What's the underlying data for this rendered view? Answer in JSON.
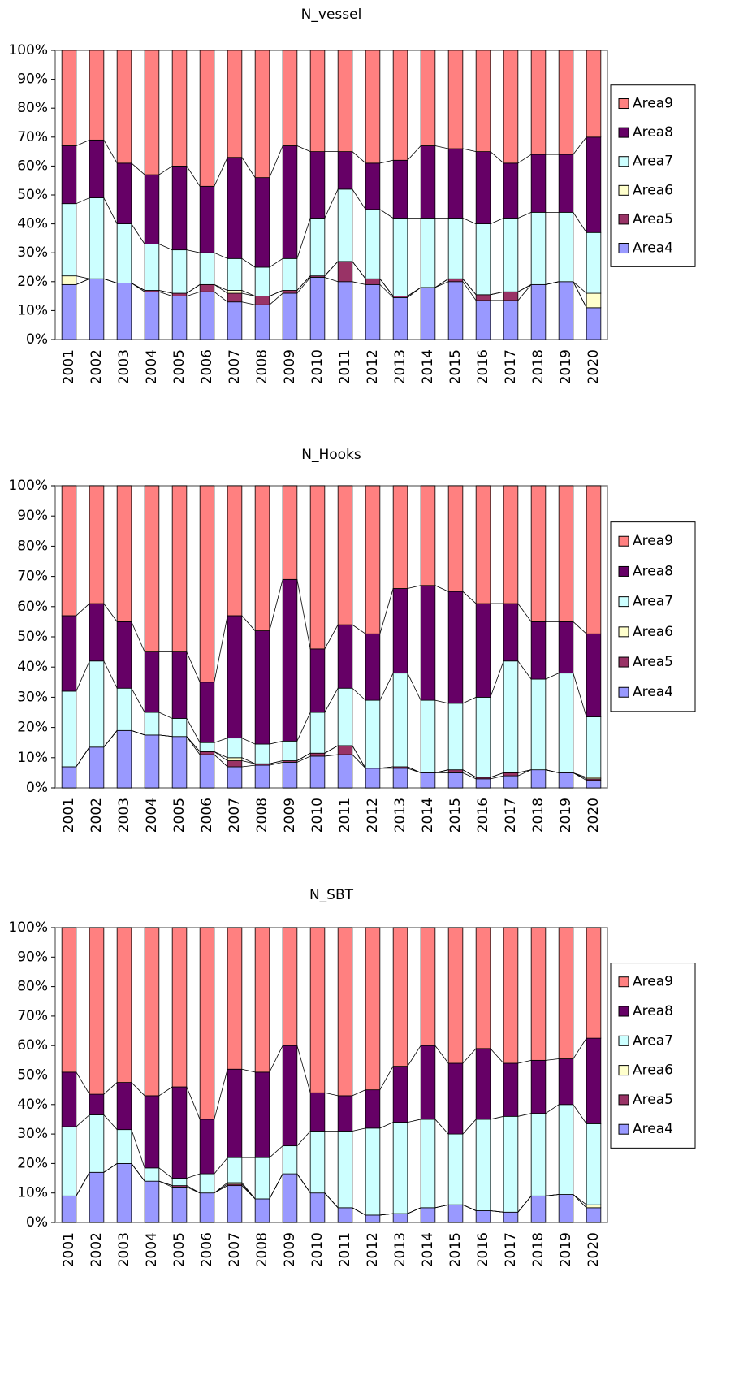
{
  "chart_data": [
    {
      "type": "bar",
      "stacked": true,
      "title": "N_vessel",
      "legend": "right",
      "categories": [
        "2001",
        "2002",
        "2003",
        "2004",
        "2005",
        "2006",
        "2007",
        "2008",
        "2009",
        "2010",
        "2011",
        "2012",
        "2013",
        "2014",
        "2015",
        "2016",
        "2017",
        "2018",
        "2019",
        "2020"
      ],
      "ylim": [
        0,
        100
      ],
      "yticks": [
        {
          "value": 0,
          "label": "0%"
        },
        {
          "value": 10,
          "label": "10%"
        },
        {
          "value": 20,
          "label": "20%"
        },
        {
          "value": 30,
          "label": "30%"
        },
        {
          "value": 40,
          "label": "40%"
        },
        {
          "value": 50,
          "label": "50%"
        },
        {
          "value": 60,
          "label": "60%"
        },
        {
          "value": 70,
          "label": "70%"
        },
        {
          "value": 80,
          "label": "80%"
        },
        {
          "value": 90,
          "label": "90%"
        },
        {
          "value": 100,
          "label": "100%"
        }
      ],
      "series": [
        {
          "name": "Area4",
          "color": "#9999ff",
          "values": [
            19,
            21,
            19.5,
            16.5,
            15,
            16.5,
            13,
            12,
            16,
            21.5,
            20,
            19,
            14.5,
            18,
            20,
            13.5,
            13.5,
            19,
            20,
            11
          ]
        },
        {
          "name": "Area5",
          "color": "#993366",
          "values": [
            0,
            0,
            0,
            0.5,
            1,
            2.5,
            3,
            3,
            1,
            0.5,
            7,
            2,
            0.5,
            0,
            1,
            2,
            3,
            0,
            0,
            0
          ]
        },
        {
          "name": "Area6",
          "color": "#ffffcc",
          "values": [
            3,
            0,
            0,
            0,
            0,
            0,
            1,
            0,
            0,
            0,
            0,
            0,
            0,
            0,
            0,
            0,
            0,
            0,
            0,
            5
          ]
        },
        {
          "name": "Area7",
          "color": "#ccffff",
          "values": [
            25,
            28,
            20.5,
            16,
            15,
            11,
            11,
            10,
            11,
            20,
            25,
            24,
            27,
            24,
            21,
            24.5,
            25.5,
            25,
            24,
            21
          ]
        },
        {
          "name": "Area8",
          "color": "#660066",
          "values": [
            20,
            20,
            21,
            24,
            29,
            23,
            35,
            31,
            39,
            23,
            13,
            16,
            20,
            25,
            24,
            25,
            19,
            20,
            20,
            33
          ]
        },
        {
          "name": "Area9",
          "color": "#ff8080",
          "values": [
            33,
            31,
            39,
            43,
            40,
            47,
            37,
            44,
            33,
            35,
            35,
            39,
            38,
            33,
            34,
            35,
            39,
            36,
            36,
            30
          ]
        }
      ]
    },
    {
      "type": "bar",
      "stacked": true,
      "title": "N_Hooks",
      "legend": "right",
      "categories": [
        "2001",
        "2002",
        "2003",
        "2004",
        "2005",
        "2006",
        "2007",
        "2008",
        "2009",
        "2010",
        "2011",
        "2012",
        "2013",
        "2014",
        "2015",
        "2016",
        "2017",
        "2018",
        "2019",
        "2020"
      ],
      "ylim": [
        0,
        100
      ],
      "yticks": [
        {
          "value": 0,
          "label": "0%"
        },
        {
          "value": 10,
          "label": "10%"
        },
        {
          "value": 20,
          "label": "20%"
        },
        {
          "value": 30,
          "label": "30%"
        },
        {
          "value": 40,
          "label": "40%"
        },
        {
          "value": 50,
          "label": "50%"
        },
        {
          "value": 60,
          "label": "60%"
        },
        {
          "value": 70,
          "label": "70%"
        },
        {
          "value": 80,
          "label": "80%"
        },
        {
          "value": 90,
          "label": "90%"
        },
        {
          "value": 100,
          "label": "100%"
        }
      ],
      "series": [
        {
          "name": "Area4",
          "color": "#9999ff",
          "values": [
            7,
            13.5,
            19,
            17.5,
            17,
            11,
            7,
            7.5,
            8.5,
            10.5,
            11,
            6.5,
            6.5,
            5,
            5,
            3,
            4,
            6,
            5,
            2.5
          ]
        },
        {
          "name": "Area5",
          "color": "#993366",
          "values": [
            0,
            0,
            0,
            0,
            0,
            1,
            2,
            0.5,
            0.5,
            1,
            3,
            0,
            0.5,
            0,
            1,
            0.5,
            1,
            0,
            0,
            0.5
          ]
        },
        {
          "name": "Area6",
          "color": "#ffffcc",
          "values": [
            0,
            0,
            0,
            0,
            0,
            0,
            1,
            0,
            0,
            0,
            0,
            0,
            0,
            0,
            0,
            0,
            0,
            0,
            0,
            0.5
          ]
        },
        {
          "name": "Area7",
          "color": "#ccffff",
          "values": [
            25,
            28.5,
            14,
            7.5,
            6,
            3,
            6.5,
            6.5,
            6.5,
            13.5,
            19,
            22.5,
            31,
            24,
            22,
            26.5,
            37,
            30,
            33,
            20
          ]
        },
        {
          "name": "Area8",
          "color": "#660066",
          "values": [
            25,
            19,
            22,
            20,
            22,
            20,
            40.5,
            37.5,
            53.5,
            21,
            21,
            22,
            28,
            38,
            37,
            31,
            19,
            19,
            17,
            27.5
          ]
        },
        {
          "name": "Area9",
          "color": "#ff8080",
          "values": [
            43,
            39,
            45,
            55,
            55,
            65,
            43,
            48,
            31,
            54,
            46,
            49,
            34,
            33,
            35,
            39,
            39,
            45,
            45,
            49
          ]
        }
      ]
    },
    {
      "type": "bar",
      "stacked": true,
      "title": "N_SBT",
      "legend": "right",
      "categories": [
        "2001",
        "2002",
        "2003",
        "2004",
        "2005",
        "2006",
        "2007",
        "2008",
        "2009",
        "2010",
        "2011",
        "2012",
        "2013",
        "2014",
        "2015",
        "2016",
        "2017",
        "2018",
        "2019",
        "2020"
      ],
      "ylim": [
        0,
        100
      ],
      "yticks": [
        {
          "value": 0,
          "label": "0%"
        },
        {
          "value": 10,
          "label": "10%"
        },
        {
          "value": 20,
          "label": "20%"
        },
        {
          "value": 30,
          "label": "30%"
        },
        {
          "value": 40,
          "label": "40%"
        },
        {
          "value": 50,
          "label": "50%"
        },
        {
          "value": 60,
          "label": "60%"
        },
        {
          "value": 70,
          "label": "70%"
        },
        {
          "value": 80,
          "label": "80%"
        },
        {
          "value": 90,
          "label": "90%"
        },
        {
          "value": 100,
          "label": "100%"
        }
      ],
      "series": [
        {
          "name": "Area4",
          "color": "#9999ff",
          "values": [
            9,
            17,
            20,
            14,
            12,
            10,
            12.5,
            8,
            16.5,
            10,
            5,
            2.5,
            3,
            5,
            6,
            4,
            3.5,
            9,
            9.5,
            5
          ]
        },
        {
          "name": "Area5",
          "color": "#993366",
          "values": [
            0,
            0,
            0,
            0,
            0.5,
            0,
            0.5,
            0,
            0,
            0,
            0,
            0,
            0,
            0,
            0,
            0,
            0,
            0,
            0,
            0
          ]
        },
        {
          "name": "Area6",
          "color": "#ffffcc",
          "values": [
            0,
            0,
            0,
            0,
            0,
            0,
            0.5,
            0,
            0,
            0,
            0,
            0,
            0,
            0,
            0,
            0,
            0,
            0,
            0,
            1
          ]
        },
        {
          "name": "Area7",
          "color": "#ccffff",
          "values": [
            23.5,
            19.5,
            11.5,
            4.5,
            2.5,
            6.5,
            8.5,
            14,
            9.5,
            21,
            26,
            29.5,
            31,
            30,
            24,
            31,
            32.5,
            28,
            30.5,
            27.5
          ]
        },
        {
          "name": "Area8",
          "color": "#660066",
          "values": [
            18.5,
            7,
            16,
            24.5,
            31,
            18.5,
            30,
            29,
            34,
            13,
            12,
            13,
            19,
            25,
            24,
            24,
            18,
            18,
            15.5,
            29
          ]
        },
        {
          "name": "Area9",
          "color": "#ff8080",
          "values": [
            49,
            56.5,
            52.5,
            57,
            54,
            65,
            48,
            49,
            40,
            56,
            57,
            55,
            47,
            40,
            46,
            41,
            46,
            45,
            44.5,
            37.5
          ]
        }
      ]
    }
  ]
}
